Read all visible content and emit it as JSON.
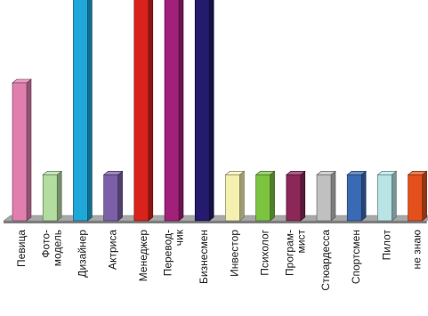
{
  "chart_data": {
    "type": "bar",
    "bar_style": "3d",
    "categories": [
      [
        "Певица"
      ],
      [
        "Фото-",
        "модель"
      ],
      [
        "Дизайнер"
      ],
      [
        "Актриса"
      ],
      [
        "Менеджер"
      ],
      [
        "Перевод-",
        "чик"
      ],
      [
        "Бизнесмен"
      ],
      [
        "Инвестор"
      ],
      [
        "Психолог"
      ],
      [
        "Програм-",
        "мист"
      ],
      [
        "Стюардесса"
      ],
      [
        "Спортсмен"
      ],
      [
        "Пилот"
      ],
      [
        "не знаю"
      ]
    ],
    "values": [
      3,
      1,
      5,
      1,
      5,
      5,
      5,
      1,
      1,
      1,
      1,
      1,
      1,
      1
    ],
    "ylim": [
      0,
      4.8
    ],
    "colors": [
      "#e07fae",
      "#b3dca0",
      "#1ea7d8",
      "#7b5fa8",
      "#d9221c",
      "#a0207a",
      "#241a6e",
      "#f4f0b0",
      "#7cc440",
      "#8b2858",
      "#c0c0c0",
      "#3a6ab4",
      "#b8e4e6",
      "#e4501c"
    ],
    "grid": false,
    "legend": "none",
    "floor_color": "#a8a8a8"
  }
}
